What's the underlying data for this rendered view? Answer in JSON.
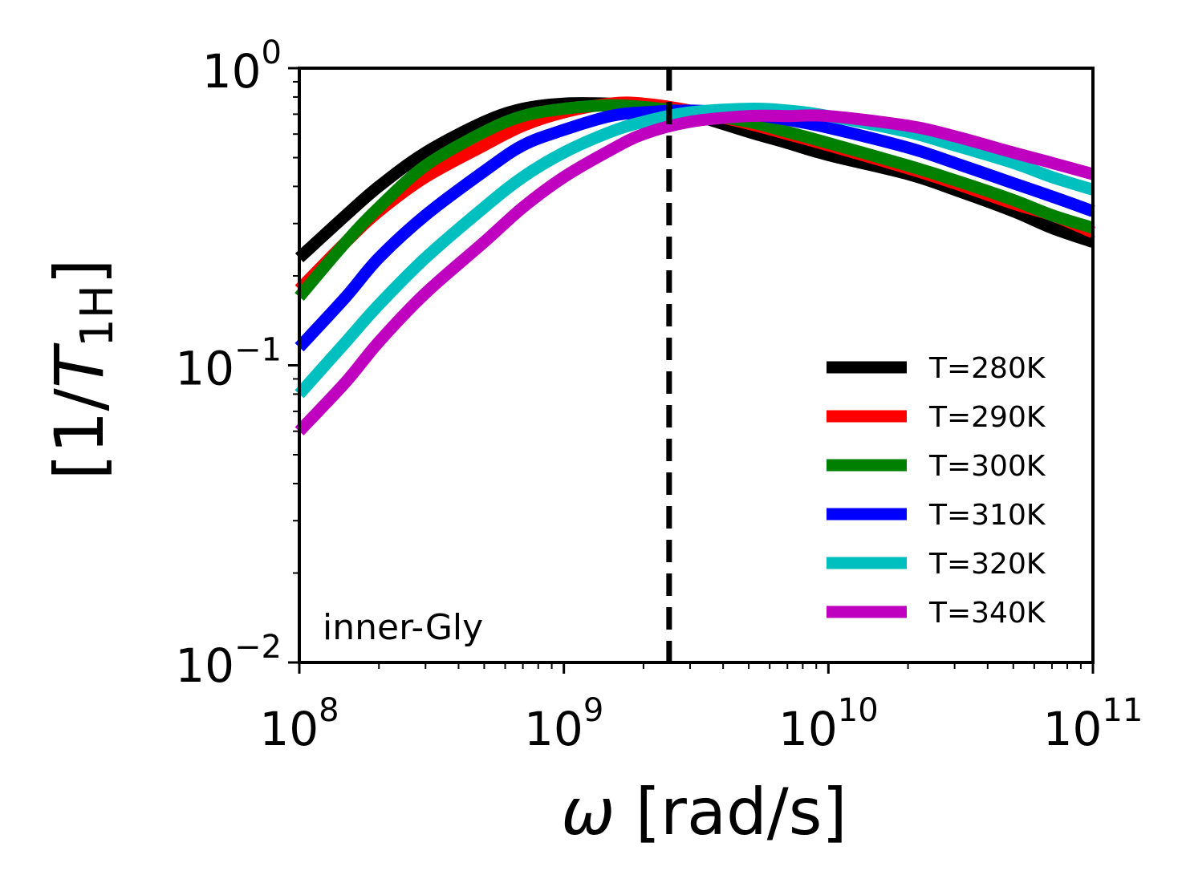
{
  "chart_data": {
    "type": "line",
    "xscale": "log",
    "yscale": "log",
    "xlim": [
      100000000.0,
      100000000000.0
    ],
    "ylim": [
      0.01,
      1.0
    ],
    "xlabel_symbol": "ω",
    "xlabel_unit": "[rad/s]",
    "ylabel_prefix": "[1/",
    "ylabel_symbol": "T",
    "ylabel_subscript": "1H",
    "ylabel_suffix": "]",
    "annotation": "inner-Gly",
    "vline_x": 2500000000.0,
    "x_ticks": [
      {
        "value": 100000000.0,
        "base": "10",
        "exp": "8"
      },
      {
        "value": 1000000000.0,
        "base": "10",
        "exp": "9"
      },
      {
        "value": 10000000000.0,
        "base": "10",
        "exp": "10"
      },
      {
        "value": 100000000000.0,
        "base": "10",
        "exp": "11"
      }
    ],
    "y_ticks": [
      {
        "value": 0.01,
        "base": "10",
        "exp": "−2"
      },
      {
        "value": 0.1,
        "base": "10",
        "exp": "−1"
      },
      {
        "value": 1.0,
        "base": "10",
        "exp": "0"
      }
    ],
    "series": [
      {
        "name": "T=280K",
        "color": "#000000",
        "x": [
          100000000.0,
          150000000.0,
          200000000.0,
          300000000.0,
          500000000.0,
          700000000.0,
          1000000000.0,
          1500000000.0,
          2000000000.0,
          3000000000.0,
          5000000000.0,
          7000000000.0,
          10000000000.0,
          20000000000.0,
          30000000000.0,
          50000000000.0,
          70000000000.0,
          100000000000.0
        ],
        "y": [
          0.23,
          0.32,
          0.4,
          0.52,
          0.66,
          0.73,
          0.76,
          0.76,
          0.75,
          0.7,
          0.61,
          0.56,
          0.51,
          0.44,
          0.39,
          0.33,
          0.29,
          0.26
        ]
      },
      {
        "name": "T=290K",
        "color": "#ff0000",
        "x": [
          100000000.0,
          150000000.0,
          200000000.0,
          300000000.0,
          500000000.0,
          700000000.0,
          1000000000.0,
          1500000000.0,
          2000000000.0,
          3000000000.0,
          5000000000.0,
          7000000000.0,
          10000000000.0,
          20000000000.0,
          30000000000.0,
          50000000000.0,
          70000000000.0,
          100000000000.0
        ],
        "y": [
          0.18,
          0.26,
          0.33,
          0.43,
          0.55,
          0.64,
          0.71,
          0.76,
          0.76,
          0.72,
          0.65,
          0.6,
          0.55,
          0.46,
          0.41,
          0.35,
          0.32,
          0.28
        ]
      },
      {
        "name": "T=300K",
        "color": "#008000",
        "x": [
          100000000.0,
          150000000.0,
          200000000.0,
          300000000.0,
          500000000.0,
          700000000.0,
          1000000000.0,
          1500000000.0,
          2000000000.0,
          3000000000.0,
          5000000000.0,
          7000000000.0,
          10000000000.0,
          20000000000.0,
          30000000000.0,
          50000000000.0,
          70000000000.0,
          100000000000.0
        ],
        "y": [
          0.17,
          0.26,
          0.34,
          0.47,
          0.61,
          0.69,
          0.73,
          0.75,
          0.74,
          0.71,
          0.66,
          0.61,
          0.56,
          0.47,
          0.42,
          0.36,
          0.32,
          0.29
        ]
      },
      {
        "name": "T=310K",
        "color": "#0000ff",
        "x": [
          100000000.0,
          150000000.0,
          200000000.0,
          300000000.0,
          500000000.0,
          700000000.0,
          1000000000.0,
          1500000000.0,
          2000000000.0,
          3000000000.0,
          5000000000.0,
          7000000000.0,
          10000000000.0,
          20000000000.0,
          30000000000.0,
          50000000000.0,
          70000000000.0,
          100000000000.0
        ],
        "y": [
          0.115,
          0.17,
          0.23,
          0.32,
          0.45,
          0.55,
          0.62,
          0.69,
          0.71,
          0.72,
          0.7,
          0.67,
          0.63,
          0.54,
          0.48,
          0.41,
          0.37,
          0.33
        ]
      },
      {
        "name": "T=320K",
        "color": "#00bfbf",
        "x": [
          100000000.0,
          150000000.0,
          200000000.0,
          300000000.0,
          500000000.0,
          700000000.0,
          1000000000.0,
          1500000000.0,
          2000000000.0,
          3000000000.0,
          5000000000.0,
          7000000000.0,
          10000000000.0,
          20000000000.0,
          30000000000.0,
          50000000000.0,
          70000000000.0,
          100000000000.0
        ],
        "y": [
          0.08,
          0.12,
          0.16,
          0.23,
          0.34,
          0.43,
          0.52,
          0.61,
          0.66,
          0.71,
          0.73,
          0.72,
          0.69,
          0.61,
          0.55,
          0.48,
          0.43,
          0.39
        ]
      },
      {
        "name": "T=340K",
        "color": "#bf00bf",
        "x": [
          100000000.0,
          150000000.0,
          200000000.0,
          300000000.0,
          500000000.0,
          700000000.0,
          1000000000.0,
          1500000000.0,
          2000000000.0,
          3000000000.0,
          5000000000.0,
          7000000000.0,
          10000000000.0,
          20000000000.0,
          30000000000.0,
          50000000000.0,
          70000000000.0,
          100000000000.0
        ],
        "y": [
          0.06,
          0.088,
          0.12,
          0.175,
          0.26,
          0.34,
          0.43,
          0.53,
          0.6,
          0.66,
          0.69,
          0.69,
          0.69,
          0.64,
          0.59,
          0.52,
          0.48,
          0.44
        ]
      }
    ]
  }
}
